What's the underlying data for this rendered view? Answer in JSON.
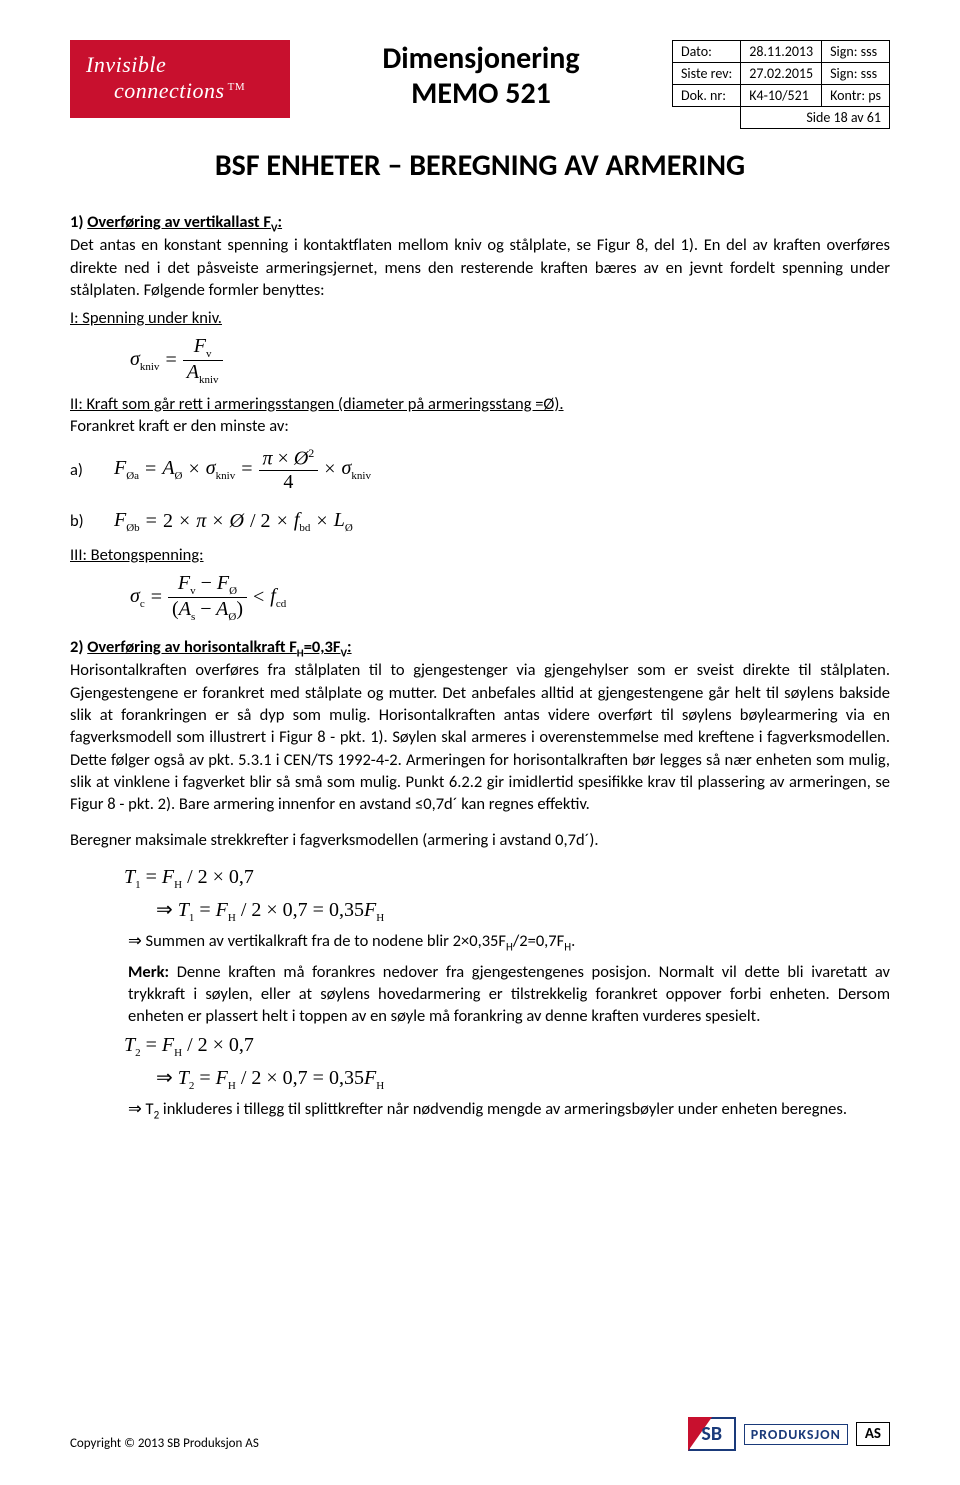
{
  "logo": {
    "line1": "Invisible",
    "line2": "connections",
    "tm": "TM"
  },
  "doc_title": {
    "line1": "Dimensjonering",
    "line2": "MEMO 521"
  },
  "meta": {
    "rows": [
      {
        "label": "Dato:",
        "val": "28.11.2013",
        "sign_lbl": "Sign: sss"
      },
      {
        "label": "Siste rev:",
        "val": "27.02.2015",
        "sign_lbl": "Sign: sss"
      },
      {
        "label": "Dok. nr:",
        "val": "K4-10/521",
        "sign_lbl": "Kontr: ps"
      }
    ],
    "side": "Side 18 av 61"
  },
  "main_heading": "BSF ENHETER – BEREGNING AV ARMERING",
  "section1": {
    "head_pre": "1) ",
    "head_u": "Overføring av vertikallast F",
    "head_sub": "V",
    "head_post": ":",
    "para": "Det antas en konstant spenning i kontaktflaten mellom kniv og stålplate, se Figur 8, del 1). En del av kraften overføres direkte ned i det påsveiste armeringsjernet, mens den resterende kraften bæres av en jevnt fordelt spenning under stålplaten. Følgende formler benyttes:"
  },
  "part_I": {
    "label": "I: Spenning under kniv.",
    "sigma": "σ",
    "kniv": "kniv",
    "eq": "=",
    "Fv_num": "F",
    "Fv_sub": "v",
    "A": "A"
  },
  "part_II": {
    "label": "II: Kraft som går rett i armeringsstangen (diameter på armeringsstang =Ø).",
    "forankret": "Forankret kraft er den minste av:",
    "a_lbl": "a)",
    "b_lbl": "b)",
    "a_text_left": "F",
    "a_sub_left": "Øa",
    "eq": "=",
    "A": "A",
    "Osub": "Ø",
    "times": "×",
    "sigma": "σ",
    "kniv": "kniv",
    "pi": "π",
    "Osq": "Ø",
    "sq": "2",
    "four": "4",
    "b_text": "F",
    "b_sub": "Øb",
    "two": "2",
    "slash2": "/ 2",
    "f": "f",
    "bd": "bd",
    "L": "L"
  },
  "part_III": {
    "label": "III: Betongspenning:",
    "sigma": "σ",
    "c": "c",
    "eq": "=",
    "Fv": "F",
    "vsub": "v",
    "minus": "−",
    "FO": "F",
    "Osub": "Ø",
    "Aparen_l": "(",
    "As": "A",
    "ssub": "s",
    "AO": "A",
    "Aparen_r": ")",
    "lt": "<",
    "f": "f",
    "cd": "cd"
  },
  "section2": {
    "head_pre": "2) ",
    "head_u": "Overføring av horisontalkraft F",
    "head_sub1": "H",
    "head_mid": "=0,3F",
    "head_sub2": "V",
    "head_post": ":",
    "para": "Horisontalkraften overføres fra stålplaten til to gjengestenger via gjengehylser som er sveist direkte til stålplaten. Gjengestengene er forankret med stålplate og mutter. Det anbefales alltid at gjengestengene går helt til søylens bakside slik at forankringen er så dyp som mulig. Horisontalkraften antas videre overført til søylens bøylearmering via en fagverksmodell som illustrert i Figur 8 - pkt. 1). Søylen skal armeres i overenstemmelse med kreftene i fagverksmodellen. Dette følger også av pkt. 5.3.1 i CEN/TS 1992-4-2. Armeringen for horisontalkraften bør legges så nær enheten som mulig, slik at vinklene i fagverket blir så små som mulig. Punkt 6.2.2 gir imidlertid spesifikke krav til plassering av armeringen, se Figur 8 - pkt. 2). Bare armering innenfor en avstand ≤0,7d´ kan regnes effektiv."
  },
  "calc_intro": "Beregner maksimale strekkrefter i fagverksmodellen (armering i avstand 0,7d´).",
  "T1": {
    "line1": "T₁ = F_H / 2 × 0,7",
    "line2": "⇒ T₁ = F_H / 2 × 0,7 = 0,35F_H",
    "sum": "⇒ Summen av vertikalkraft fra de to nodene blir 2×0,35F_H/2=0,7F_H.",
    "merk_label": "Merk:",
    "merk_text": " Denne kraften må forankres nedover fra gjengestengenes posisjon. Normalt vil dette bli ivaretatt av trykkraft i søylen, eller at søylens hovedarmering er tilstrekkelig forankret oppover forbi enheten. Dersom enheten er plassert helt i toppen av en søyle må forankring av denne kraften vurderes spesielt."
  },
  "T2": {
    "line1": "T₂ = F_H / 2 × 0,7",
    "line2": "⇒ T₂ = F_H / 2 × 0,7 = 0,35F_H",
    "note": "⇒ T₂ inkluderes i tillegg til splittkrefter når nødvendig mengde av armeringsbøyler under enheten beregnes."
  },
  "footer": {
    "copyright": "Copyright © 2013 SB Produksjon AS",
    "sb": "SB",
    "prod": "PRODUKSJON",
    "as": "AS"
  },
  "colors": {
    "brand_red": "#c8102e",
    "brand_blue": "#1a3a7a",
    "text": "#000000",
    "bg": "#ffffff"
  }
}
